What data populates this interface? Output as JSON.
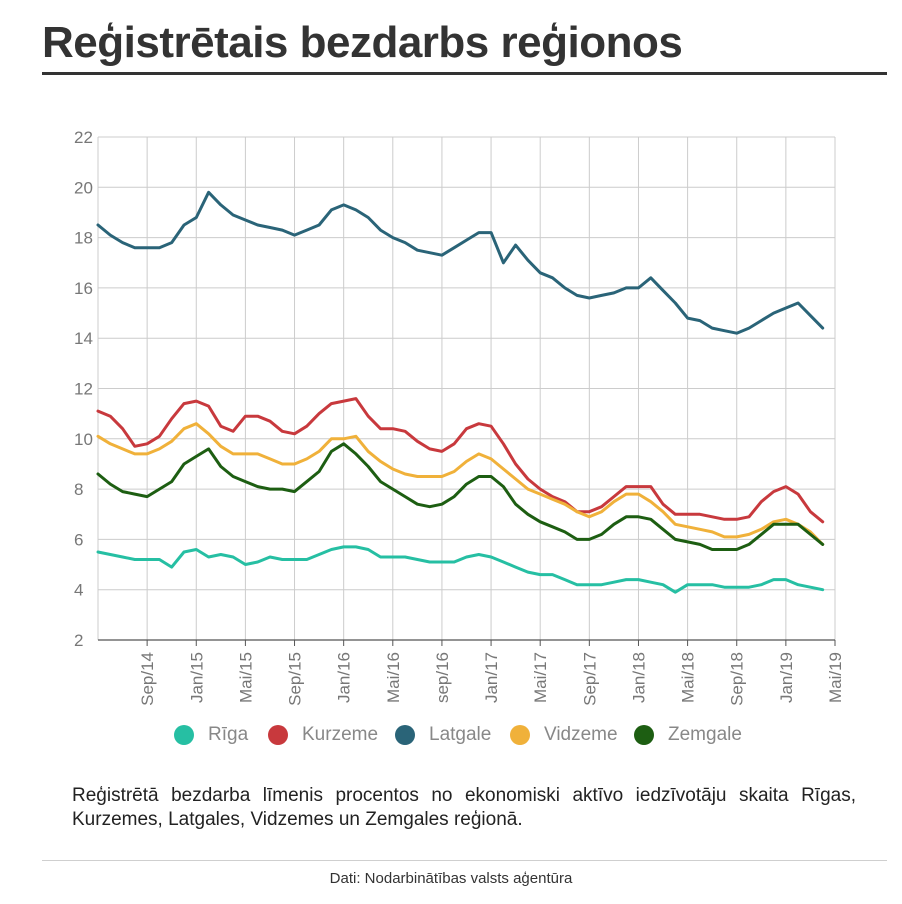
{
  "title": "Reģistrētais bezdarbs reģionos",
  "caption": "Reģistrētā bezdarba līmenis procentos no ekonomiski aktīvo iedzīvotāju skaita Rīgas, Kurzemes, Latgales, Vidzemes un Zemgales reģionā.",
  "source": "Dati: Nodarbinātības valsts aģentūra",
  "chart_data": {
    "type": "line",
    "title": "Reģistrētais bezdarbs reģionos",
    "xlabel": "",
    "ylabel": "",
    "ylim": [
      2,
      22
    ],
    "yticks": [
      2,
      4,
      6,
      8,
      10,
      12,
      14,
      16,
      18,
      20,
      22
    ],
    "x_start": "2014-05",
    "x_end": "2019-05",
    "x_ticks": [
      {
        "month": "2014-09",
        "label": "Sep/14"
      },
      {
        "month": "2015-01",
        "label": "Jan/15"
      },
      {
        "month": "2015-05",
        "label": "Mai/15"
      },
      {
        "month": "2015-09",
        "label": "Sep/15"
      },
      {
        "month": "2016-01",
        "label": "Jan/16"
      },
      {
        "month": "2016-05",
        "label": "Mai/16"
      },
      {
        "month": "2016-09",
        "label": "sep/16"
      },
      {
        "month": "2017-01",
        "label": "Jan/17"
      },
      {
        "month": "2017-05",
        "label": "Mai/17"
      },
      {
        "month": "2017-09",
        "label": "Sep/17"
      },
      {
        "month": "2018-01",
        "label": "Jan/18"
      },
      {
        "month": "2018-05",
        "label": "Mai/18"
      },
      {
        "month": "2018-09",
        "label": "Sep/18"
      },
      {
        "month": "2019-01",
        "label": "Jan/19"
      },
      {
        "month": "2019-05",
        "label": "Mai/19"
      }
    ],
    "grid": true,
    "legend_position": "bottom",
    "series": [
      {
        "name": "Rīga",
        "color": "#26bfa3",
        "values": [
          5.5,
          5.4,
          5.3,
          5.2,
          5.2,
          5.2,
          4.9,
          5.5,
          5.6,
          5.3,
          5.4,
          5.3,
          5.0,
          5.1,
          5.3,
          5.2,
          5.2,
          5.2,
          5.4,
          5.6,
          5.7,
          5.7,
          5.6,
          5.3,
          5.3,
          5.3,
          5.2,
          5.1,
          5.1,
          5.1,
          5.3,
          5.4,
          5.3,
          5.1,
          4.9,
          4.7,
          4.6,
          4.6,
          4.4,
          4.2,
          4.2,
          4.2,
          4.3,
          4.4,
          4.4,
          4.3,
          4.2,
          3.9,
          4.2,
          4.2,
          4.2,
          4.1,
          4.1,
          4.1,
          4.2,
          4.4,
          4.4,
          4.2,
          4.1,
          4.0
        ]
      },
      {
        "name": "Kurzeme",
        "color": "#c8393d",
        "values": [
          11.1,
          10.9,
          10.4,
          9.7,
          9.8,
          10.1,
          10.8,
          11.4,
          11.5,
          11.3,
          10.5,
          10.3,
          10.9,
          10.9,
          10.7,
          10.3,
          10.2,
          10.5,
          11.0,
          11.4,
          11.5,
          11.6,
          10.9,
          10.4,
          10.4,
          10.3,
          9.9,
          9.6,
          9.5,
          9.8,
          10.4,
          10.6,
          10.5,
          9.8,
          9.0,
          8.4,
          8.0,
          7.7,
          7.5,
          7.1,
          7.1,
          7.3,
          7.7,
          8.1,
          8.1,
          8.1,
          7.4,
          7.0,
          7.0,
          7.0,
          6.9,
          6.8,
          6.8,
          6.9,
          7.5,
          7.9,
          8.1,
          7.8,
          7.1,
          6.7
        ]
      },
      {
        "name": "Latgale",
        "color": "#2a6478",
        "values": [
          18.5,
          18.1,
          17.8,
          17.6,
          17.6,
          17.6,
          17.8,
          18.5,
          18.8,
          19.8,
          19.3,
          18.9,
          18.7,
          18.5,
          18.4,
          18.3,
          18.1,
          18.3,
          18.5,
          19.1,
          19.3,
          19.1,
          18.8,
          18.3,
          18.0,
          17.8,
          17.5,
          17.4,
          17.3,
          17.6,
          17.9,
          18.2,
          18.2,
          17.0,
          17.7,
          17.1,
          16.6,
          16.4,
          16.0,
          15.7,
          15.6,
          15.7,
          15.8,
          16.0,
          16.0,
          16.4,
          15.9,
          15.4,
          14.8,
          14.7,
          14.4,
          14.3,
          14.2,
          14.4,
          14.7,
          15.0,
          15.2,
          15.4,
          14.9,
          14.4
        ]
      },
      {
        "name": "Vidzeme",
        "color": "#f0b13a",
        "values": [
          10.1,
          9.8,
          9.6,
          9.4,
          9.4,
          9.6,
          9.9,
          10.4,
          10.6,
          10.2,
          9.7,
          9.4,
          9.4,
          9.4,
          9.2,
          9.0,
          9.0,
          9.2,
          9.5,
          10.0,
          10.0,
          10.1,
          9.5,
          9.1,
          8.8,
          8.6,
          8.5,
          8.5,
          8.5,
          8.7,
          9.1,
          9.4,
          9.2,
          8.8,
          8.4,
          8.0,
          7.8,
          7.6,
          7.4,
          7.1,
          6.9,
          7.1,
          7.5,
          7.8,
          7.8,
          7.5,
          7.1,
          6.6,
          6.5,
          6.4,
          6.3,
          6.1,
          6.1,
          6.2,
          6.4,
          6.7,
          6.8,
          6.6,
          6.3,
          5.8
        ]
      },
      {
        "name": "Zemgale",
        "color": "#1d5e12",
        "values": [
          8.6,
          8.2,
          7.9,
          7.8,
          7.7,
          8.0,
          8.3,
          9.0,
          9.3,
          9.6,
          8.9,
          8.5,
          8.3,
          8.1,
          8.0,
          8.0,
          7.9,
          8.3,
          8.7,
          9.5,
          9.8,
          9.4,
          8.9,
          8.3,
          8.0,
          7.7,
          7.4,
          7.3,
          7.4,
          7.7,
          8.2,
          8.5,
          8.5,
          8.1,
          7.4,
          7.0,
          6.7,
          6.5,
          6.3,
          6.0,
          6.0,
          6.2,
          6.6,
          6.9,
          6.9,
          6.8,
          6.4,
          6.0,
          5.9,
          5.8,
          5.6,
          5.6,
          5.6,
          5.8,
          6.2,
          6.6,
          6.6,
          6.6,
          6.2,
          5.8
        ]
      }
    ]
  }
}
